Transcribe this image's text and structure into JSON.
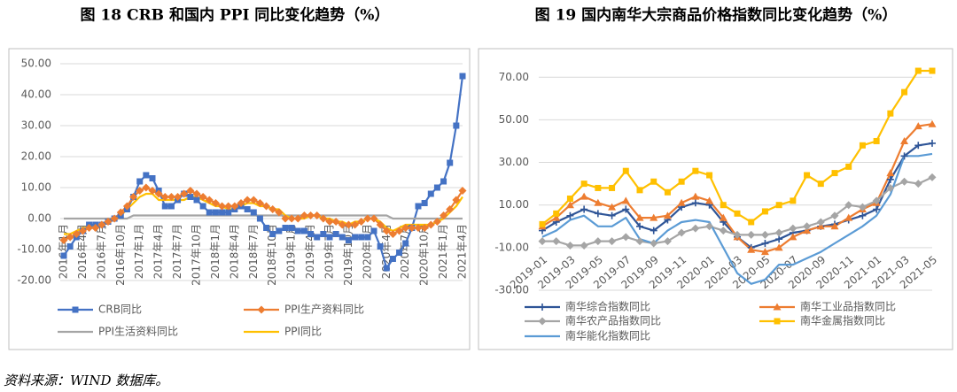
{
  "chart_data": [
    {
      "type": "line",
      "title": "图 18 CRB 和国内 PPI 同比变化趋势（%）",
      "categories": [
        "2016年1月",
        null,
        null,
        "2016年4月",
        null,
        null,
        "2016年7月",
        null,
        null,
        "2016年10月",
        null,
        null,
        "2017年1月",
        null,
        null,
        "2017年4月",
        null,
        null,
        "2017年7月",
        null,
        null,
        "2017年10月",
        null,
        null,
        "2018年1月",
        null,
        null,
        "2018年4月",
        null,
        null,
        "2018年7月",
        null,
        null,
        "2018年10月",
        null,
        null,
        "2019年1月",
        null,
        null,
        "2019年4月",
        null,
        null,
        "2019年7月",
        null,
        null,
        "2019年10月",
        null,
        null,
        "2020年1月",
        null,
        null,
        "2020年4月",
        null,
        null,
        "2020年7月",
        null,
        null,
        "2020年10月",
        null,
        null,
        "2021年1月",
        null,
        null,
        "2021年4月"
      ],
      "series": [
        {
          "name": "CRB同比",
          "color": "#4472c4",
          "marker": "square",
          "values": [
            -12,
            -9,
            -6,
            -4,
            -2,
            -2,
            -2,
            -1,
            0,
            1,
            3,
            7,
            12,
            14,
            13,
            9,
            4,
            4,
            6,
            8,
            7,
            6,
            4,
            2,
            2,
            2,
            2,
            3,
            4,
            3,
            2,
            0,
            -3,
            -5,
            -4,
            -3,
            -3,
            -4,
            -4,
            -5,
            -6,
            -5,
            -6,
            -5,
            -6,
            -7,
            -6,
            -6,
            -6,
            -4,
            -9,
            -16,
            -13,
            -11,
            -8,
            -3,
            4,
            5,
            8,
            10,
            12,
            18,
            30,
            46
          ]
        },
        {
          "name": "PPI生产资料同比",
          "color": "#ed7d31",
          "marker": "diamond",
          "values": [
            -7,
            -6,
            -5,
            -4,
            -3,
            -3,
            -2,
            -1,
            0,
            2,
            4,
            7,
            9,
            10,
            9,
            8,
            7,
            7,
            7,
            8,
            9,
            8,
            7,
            6,
            5,
            4,
            4,
            4,
            5,
            6,
            6,
            5,
            4,
            3,
            2,
            0,
            0,
            0,
            1,
            1,
            1,
            0,
            -1,
            -1,
            -2,
            -2,
            -2,
            -1,
            0,
            0,
            -2,
            -4,
            -5,
            -4,
            -3,
            -3,
            -3,
            -3,
            -2,
            -1,
            1,
            3,
            6,
            9
          ]
        },
        {
          "name": "PPI生活资料同比",
          "color": "#a5a5a5",
          "marker": "none",
          "values": [
            0,
            0,
            0,
            0,
            0,
            0,
            0,
            0,
            0,
            0,
            0,
            1,
            1,
            1,
            1,
            1,
            1,
            1,
            1,
            1,
            1,
            1,
            1,
            1,
            1,
            1,
            1,
            1,
            1,
            1,
            1,
            1,
            1,
            1,
            1,
            1,
            1,
            1,
            1,
            1,
            1,
            1,
            1,
            1,
            1,
            1,
            1,
            1,
            1,
            1,
            1,
            1,
            0,
            0,
            0,
            0,
            0,
            0,
            0,
            0,
            0,
            0,
            0,
            0
          ]
        },
        {
          "name": "PPI同比",
          "color": "#ffc000",
          "marker": "none",
          "values": [
            -5,
            -5,
            -4,
            -3,
            -3,
            -2,
            -2,
            -1,
            0,
            1,
            3,
            5,
            7,
            8,
            8,
            6,
            6,
            6,
            6,
            6,
            7,
            7,
            6,
            5,
            4,
            4,
            3,
            3,
            4,
            5,
            5,
            4,
            4,
            3,
            3,
            1,
            0,
            0,
            0,
            1,
            1,
            0,
            0,
            -1,
            -1,
            -2,
            -1,
            -1,
            0,
            0,
            -1,
            -3,
            -4,
            -3,
            -2,
            -2,
            -2,
            -2,
            -2,
            -1,
            0,
            2,
            4,
            7
          ]
        }
      ],
      "ylim": [
        -20,
        50
      ],
      "yticks": [
        {
          "value": -20,
          "label": "-20.00"
        },
        {
          "value": -10,
          "label": "-10.00"
        },
        {
          "value": 0,
          "label": "0.00"
        },
        {
          "value": 10,
          "label": "10.00"
        },
        {
          "value": 20,
          "label": "20.00"
        },
        {
          "value": 30,
          "label": "30.00"
        },
        {
          "value": 40,
          "label": "40.00"
        },
        {
          "value": 50,
          "label": "50.00"
        }
      ],
      "grid": true
    },
    {
      "type": "line",
      "title": "图 19  国内南华大宗商品价格指数同比变化趋势（%）",
      "categories": [
        "2019-01",
        null,
        "2019-03",
        null,
        "2019-05",
        null,
        "2019-07",
        null,
        "2019-09",
        null,
        "2019-11",
        null,
        "2020-01",
        null,
        "2020-03",
        null,
        "2020-05",
        null,
        "2020-07",
        null,
        "2020-09",
        null,
        "2020-11",
        null,
        "2021-01",
        null,
        "2021-03",
        null,
        "2021-05"
      ],
      "series": [
        {
          "name": "南华综合指数同比",
          "color": "#2f5597",
          "marker": "plus",
          "values": [
            -2,
            2,
            5,
            8,
            6,
            5,
            8,
            0,
            -2,
            3,
            9,
            11,
            10,
            2,
            -5,
            -10,
            -8,
            -6,
            -3,
            -2,
            0,
            1,
            3,
            5,
            8,
            22,
            33,
            38,
            39
          ]
        },
        {
          "name": "南华工业品指数同比",
          "color": "#ed7d31",
          "marker": "triangle",
          "values": [
            0,
            4,
            10,
            14,
            11,
            9,
            12,
            4,
            4,
            5,
            11,
            14,
            12,
            4,
            -5,
            -11,
            -12,
            -10,
            -5,
            -2,
            0,
            0,
            4,
            8,
            11,
            25,
            40,
            47,
            48
          ]
        },
        {
          "name": "南华农产品指数同比",
          "color": "#a5a5a5",
          "marker": "diamond",
          "values": [
            -7,
            -7,
            -9,
            -9,
            -7,
            -7,
            -5,
            -7,
            -8,
            -7,
            -3,
            -1,
            0,
            -2,
            -4,
            -4,
            -4,
            -3,
            -1,
            0,
            2,
            5,
            10,
            9,
            12,
            18,
            21,
            20,
            23
          ]
        },
        {
          "name": "南华金属指数同比",
          "color": "#ffc000",
          "marker": "square",
          "values": [
            1,
            6,
            13,
            20,
            18,
            18,
            26,
            17,
            21,
            16,
            21,
            26,
            24,
            10,
            6,
            2,
            7,
            10,
            12,
            24,
            20,
            25,
            28,
            38,
            40,
            53,
            63,
            73,
            73
          ]
        },
        {
          "name": "南华能化指数同比",
          "color": "#5b9bd5",
          "marker": "none",
          "values": [
            -5,
            -2,
            3,
            5,
            0,
            0,
            4,
            -6,
            -8,
            -2,
            2,
            3,
            2,
            -10,
            -22,
            -27,
            -25,
            -18,
            -18,
            -15,
            -12,
            -8,
            -4,
            0,
            5,
            15,
            33,
            33,
            34
          ]
        }
      ],
      "ylim": [
        -30,
        78
      ],
      "yticks": [
        {
          "value": -30,
          "label": "-30.00"
        },
        {
          "value": -10,
          "label": "-10.00"
        },
        {
          "value": 10,
          "label": "10.00"
        },
        {
          "value": 30,
          "label": "30.00"
        },
        {
          "value": 50,
          "label": "50.00"
        },
        {
          "value": 70,
          "label": "70.00"
        }
      ],
      "grid": true
    }
  ],
  "source": "资料来源：WIND 数据库。"
}
